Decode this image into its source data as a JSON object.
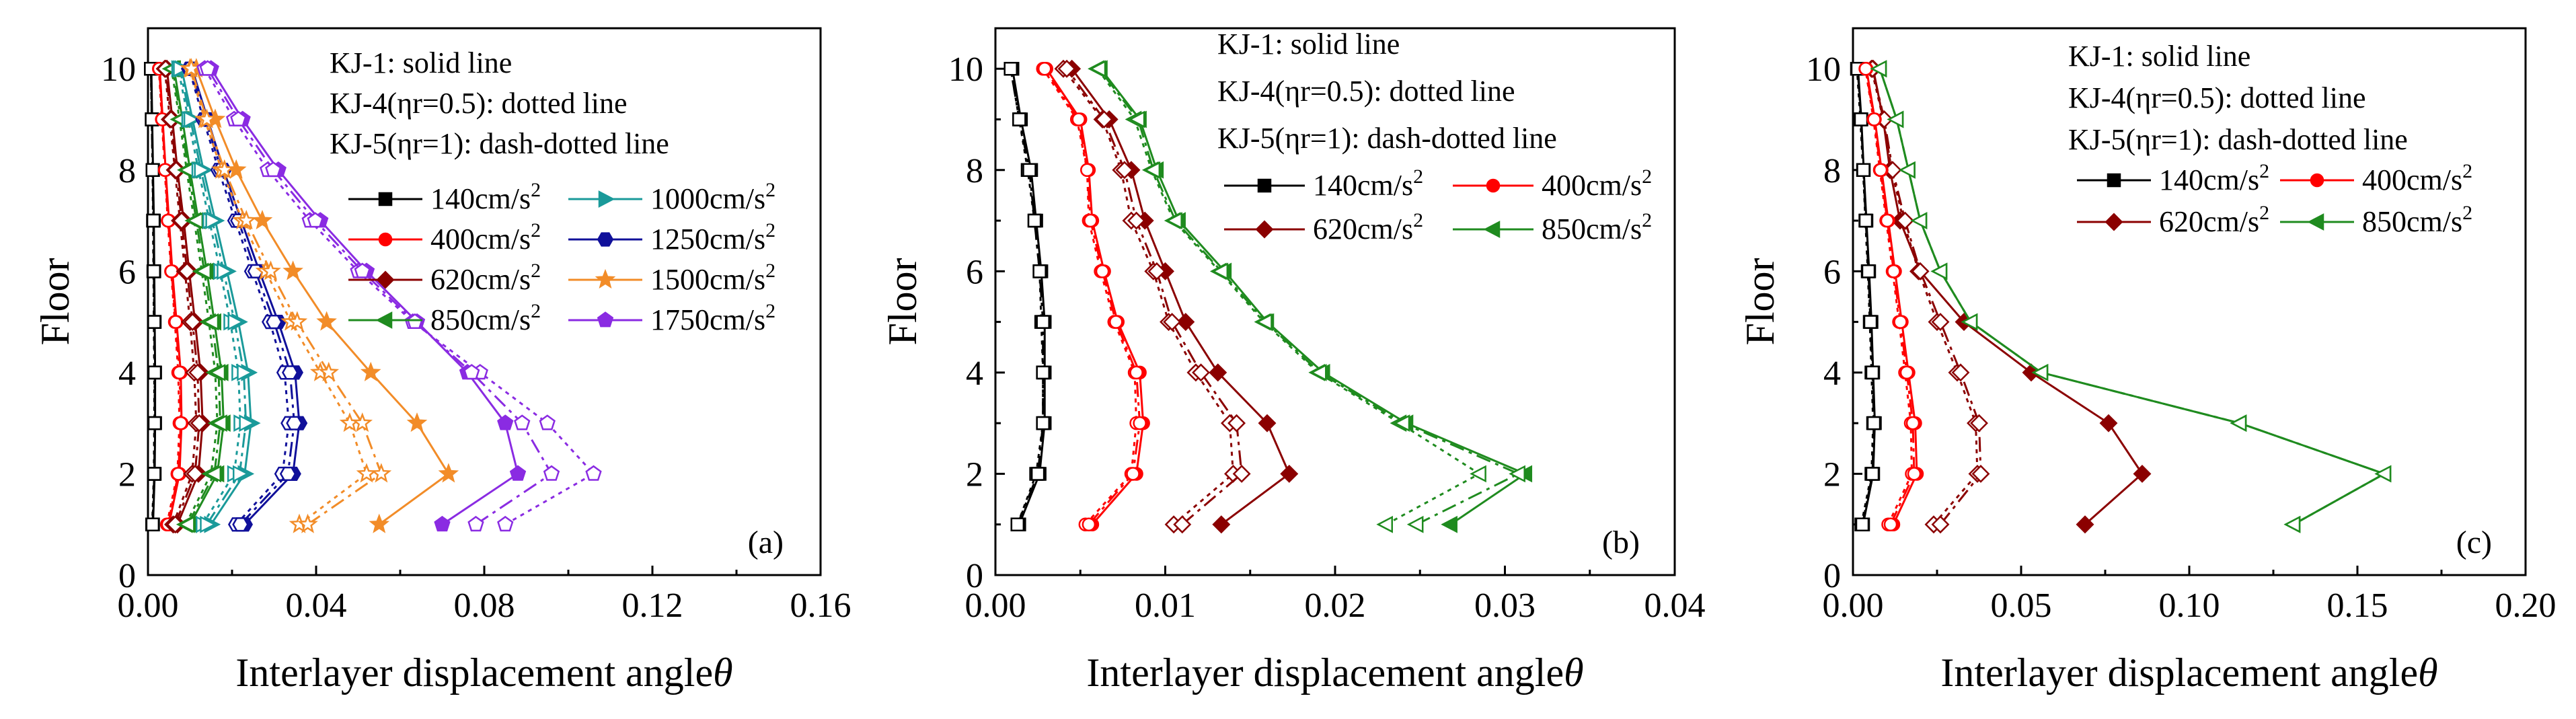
{
  "figure": {
    "xlabel": "Interlayer displacement angle",
    "xlabel_symbol": "θ",
    "ylabel": "Floor"
  },
  "chart_data": [
    {
      "type": "line",
      "panel_label": "(a)",
      "xlim": [
        0,
        0.16
      ],
      "ylim": [
        0,
        10.8
      ],
      "x_ticks": [
        "0.00",
        "0.04",
        "0.08",
        "0.12",
        "0.16"
      ],
      "y_ticks": [
        "0",
        "2",
        "4",
        "6",
        "8",
        "10"
      ],
      "legend_header": [
        "KJ-1: solid line",
        "KJ-4(ηr=0.5): dotted line",
        "KJ-5(ηr=1): dash-dotted line"
      ],
      "legend_columns": 2,
      "floors": [
        1,
        2,
        3,
        4,
        5,
        6,
        7,
        8,
        9,
        10
      ],
      "series": [
        {
          "name": "140cm/s",
          "sup": "2",
          "color": "#000000",
          "marker": "square",
          "kj1": [
            0.0012,
            0.0016,
            0.0017,
            0.0017,
            0.0016,
            0.0015,
            0.0014,
            0.0012,
            0.001,
            0.0008
          ],
          "kj4": [
            0.001,
            0.0014,
            0.0015,
            0.0015,
            0.0014,
            0.0013,
            0.0012,
            0.0011,
            0.0009,
            0.0007
          ],
          "kj5": [
            0.0011,
            0.0015,
            0.0016,
            0.0016,
            0.0015,
            0.0014,
            0.0013,
            0.0011,
            0.0009,
            0.0007
          ]
        },
        {
          "name": "400cm/s",
          "sup": "2",
          "color": "#ff0000",
          "marker": "circle",
          "kj1": [
            0.005,
            0.0075,
            0.008,
            0.0078,
            0.0068,
            0.0058,
            0.005,
            0.0042,
            0.0035,
            0.0028
          ],
          "kj4": [
            0.0045,
            0.007,
            0.0075,
            0.0072,
            0.0064,
            0.0055,
            0.0047,
            0.004,
            0.0033,
            0.0026
          ],
          "kj5": [
            0.0048,
            0.0072,
            0.0078,
            0.0075,
            0.0066,
            0.0056,
            0.0048,
            0.0041,
            0.0034,
            0.0027
          ]
        },
        {
          "name": "620cm/s",
          "sup": "2",
          "color": "#8b0000",
          "marker": "diamond",
          "kj1": [
            0.007,
            0.012,
            0.013,
            0.0125,
            0.0112,
            0.0098,
            0.0085,
            0.007,
            0.0058,
            0.0045
          ],
          "kj4": [
            0.006,
            0.0105,
            0.0115,
            0.011,
            0.01,
            0.0088,
            0.0076,
            0.0064,
            0.0052,
            0.004
          ],
          "kj5": [
            0.0065,
            0.0112,
            0.0122,
            0.0118,
            0.0106,
            0.0093,
            0.008,
            0.0067,
            0.0055,
            0.0042
          ]
        },
        {
          "name": "850cm/s",
          "sup": "2",
          "color": "#1f8b1f",
          "marker": "triangle-left",
          "kj1": [
            0.01,
            0.0165,
            0.018,
            0.0175,
            0.0158,
            0.014,
            0.012,
            0.01,
            0.0082,
            0.0062
          ],
          "kj4": [
            0.009,
            0.015,
            0.0165,
            0.016,
            0.0145,
            0.0128,
            0.011,
            0.0092,
            0.0075,
            0.0056
          ],
          "kj5": [
            0.0095,
            0.0158,
            0.0172,
            0.0168,
            0.0152,
            0.0134,
            0.0115,
            0.0096,
            0.0078,
            0.0059
          ]
        },
        {
          "name": "1000cm/s",
          "sup": "2",
          "color": "#1a9a9a",
          "marker": "triangle-right",
          "kj1": [
            0.015,
            0.023,
            0.0245,
            0.0238,
            0.0215,
            0.0188,
            0.016,
            0.0132,
            0.0106,
            0.008
          ],
          "kj4": [
            0.013,
            0.0205,
            0.022,
            0.0215,
            0.0196,
            0.0172,
            0.0146,
            0.012,
            0.0096,
            0.0072
          ],
          "kj5": [
            0.014,
            0.0218,
            0.0233,
            0.0228,
            0.0206,
            0.018,
            0.0153,
            0.0126,
            0.0101,
            0.0076
          ]
        },
        {
          "name": "1250cm/s",
          "sup": "2",
          "color": "#10109a",
          "marker": "hexagon",
          "kj1": [
            0.023,
            0.0345,
            0.036,
            0.035,
            0.031,
            0.0265,
            0.0222,
            0.018,
            0.0142,
            0.0105
          ],
          "kj4": [
            0.021,
            0.032,
            0.0335,
            0.0325,
            0.029,
            0.0248,
            0.0208,
            0.0168,
            0.0132,
            0.0098
          ],
          "kj5": [
            0.022,
            0.0333,
            0.0348,
            0.0338,
            0.03,
            0.0256,
            0.0215,
            0.0174,
            0.0137,
            0.0101
          ]
        },
        {
          "name": "1500cm/s",
          "sup": "2",
          "color": "#f28c28",
          "marker": "star",
          "kj1": [
            0.055,
            0.0715,
            0.064,
            0.053,
            0.0425,
            0.0345,
            0.0272,
            0.021,
            0.016,
            0.0115
          ],
          "kj4": [
            0.036,
            0.052,
            0.048,
            0.041,
            0.034,
            0.028,
            0.0225,
            0.0175,
            0.0135,
            0.01
          ],
          "kj5": [
            0.038,
            0.0555,
            0.051,
            0.043,
            0.0355,
            0.0292,
            0.0234,
            0.0182,
            0.014,
            0.0103
          ]
        },
        {
          "name": "1750cm/s",
          "sup": "2",
          "color": "#8a2be2",
          "marker": "pentagon",
          "kj1": [
            0.07,
            0.088,
            0.085,
            0.076,
            0.064,
            0.052,
            0.041,
            0.031,
            0.0225,
            0.015
          ],
          "kj4": [
            0.085,
            0.106,
            0.095,
            0.079,
            0.063,
            0.05,
            0.0385,
            0.0285,
            0.0205,
            0.0135
          ],
          "kj5": [
            0.078,
            0.096,
            0.089,
            0.077,
            0.0635,
            0.051,
            0.0398,
            0.0298,
            0.0215,
            0.0142
          ]
        }
      ]
    },
    {
      "type": "line",
      "panel_label": "(b)",
      "xlim": [
        0,
        0.04
      ],
      "ylim": [
        0,
        10.8
      ],
      "x_ticks": [
        "0.00",
        "0.01",
        "0.02",
        "0.03",
        "0.04"
      ],
      "y_ticks": [
        "0",
        "2",
        "4",
        "6",
        "8",
        "10"
      ],
      "legend_header": [
        "KJ-1: solid line",
        "KJ-4(ηr=0.5): dotted line",
        "KJ-5(ηr=1): dash-dotted line"
      ],
      "legend_columns": 2,
      "floors": [
        1,
        2,
        3,
        4,
        5,
        6,
        7,
        8,
        9,
        10
      ],
      "series": [
        {
          "name": "140cm/s",
          "sup": "2",
          "color": "#000000",
          "marker": "square",
          "kj1": [
            0.0014,
            0.0026,
            0.0029,
            0.0029,
            0.0029,
            0.0027,
            0.0024,
            0.0021,
            0.0015,
            0.001
          ],
          "kj4": [
            0.0013,
            0.0024,
            0.0028,
            0.0028,
            0.0027,
            0.0026,
            0.0023,
            0.0019,
            0.0014,
            0.0009
          ],
          "kj5": [
            0.0013,
            0.0025,
            0.0028,
            0.0028,
            0.0028,
            0.0026,
            0.0023,
            0.002,
            0.0014,
            0.0009
          ]
        },
        {
          "name": "620cm/s",
          "sup": "2",
          "color": "#8b0000",
          "marker": "diamond",
          "kj1": [
            0.0133,
            0.0173,
            0.016,
            0.0131,
            0.0112,
            0.01,
            0.0088,
            0.008,
            0.0067,
            0.0045
          ],
          "kj4": [
            0.0105,
            0.014,
            0.0138,
            0.0118,
            0.0102,
            0.0093,
            0.008,
            0.0074,
            0.0063,
            0.004
          ],
          "kj5": [
            0.011,
            0.0145,
            0.0142,
            0.0121,
            0.0104,
            0.0095,
            0.0083,
            0.0076,
            0.0064,
            0.0042
          ]
        },
        {
          "name": "400cm/s",
          "sup": "2",
          "color": "#ff0000",
          "marker": "circle",
          "kj1": [
            0.0057,
            0.0083,
            0.0087,
            0.0085,
            0.0072,
            0.0064,
            0.0057,
            0.0055,
            0.005,
            0.003
          ],
          "kj4": [
            0.0053,
            0.008,
            0.0083,
            0.0082,
            0.007,
            0.0062,
            0.0055,
            0.0054,
            0.0048,
            0.0028
          ],
          "kj5": [
            0.0055,
            0.0081,
            0.0085,
            0.0083,
            0.0071,
            0.0063,
            0.0056,
            0.0054,
            0.0049,
            0.0029
          ]
        },
        {
          "name": "850cm/s",
          "sup": "2",
          "color": "#1f8b1f",
          "marker": "triangle-left",
          "kj1": [
            0.0268,
            0.0312,
            0.0242,
            0.0193,
            0.016,
            0.0135,
            0.0108,
            0.0095,
            0.0085,
            0.0062
          ],
          "kj4": [
            0.023,
            0.0285,
            0.0238,
            0.019,
            0.0158,
            0.0132,
            0.0105,
            0.0092,
            0.0082,
            0.006
          ],
          "kj5": [
            0.0248,
            0.0308,
            0.024,
            0.0191,
            0.0159,
            0.0133,
            0.0106,
            0.0093,
            0.0084,
            0.0061
          ]
        }
      ]
    },
    {
      "type": "line",
      "panel_label": "(c)",
      "xlim": [
        0,
        0.2
      ],
      "ylim": [
        0,
        10.8
      ],
      "x_ticks": [
        "0.00",
        "0.05",
        "0.10",
        "0.15",
        "0.20"
      ],
      "y_ticks": [
        "0",
        "2",
        "4",
        "6",
        "8",
        "10"
      ],
      "legend_header": [
        "KJ-1: solid line",
        "KJ-4(ηr=0.5): dotted line",
        "KJ-5(ηr=1): dash-dotted line"
      ],
      "legend_columns": 2,
      "floors": [
        1,
        2,
        3,
        4,
        5,
        6,
        7,
        8,
        9,
        10
      ],
      "series": [
        {
          "name": "140cm/s",
          "sup": "2",
          "color": "#000000",
          "marker": "square",
          "kj1": [
            0.003,
            0.006,
            0.0065,
            0.006,
            0.0055,
            0.0048,
            0.004,
            0.0032,
            0.0025,
            0.0015
          ],
          "kj4": [
            0.0025,
            0.0055,
            0.006,
            0.0055,
            0.005,
            0.0044,
            0.0037,
            0.003,
            0.0022,
            0.0012
          ],
          "kj5": [
            0.0028,
            0.0058,
            0.0062,
            0.0058,
            0.0052,
            0.0046,
            0.0038,
            0.0031,
            0.0024,
            0.0014
          ]
        },
        {
          "name": "620cm/s",
          "sup": "2",
          "color": "#8b0000",
          "marker": "diamond",
          "kj1": [
            0.069,
            0.086,
            0.076,
            0.053,
            0.033,
            0.02,
            0.014,
            0.011,
            0.009,
            0.006
          ],
          "kj4": [
            0.024,
            0.037,
            0.0365,
            0.031,
            0.025,
            0.0195,
            0.015,
            0.0115,
            0.009,
            0.0055
          ],
          "kj5": [
            0.026,
            0.038,
            0.0375,
            0.032,
            0.026,
            0.02,
            0.0155,
            0.0118,
            0.0093,
            0.0058
          ]
        },
        {
          "name": "400cm/s",
          "sup": "2",
          "color": "#ff0000",
          "marker": "circle",
          "kj1": [
            0.012,
            0.019,
            0.0185,
            0.0165,
            0.0145,
            0.0125,
            0.0105,
            0.0085,
            0.0065,
            0.004
          ],
          "kj4": [
            0.0105,
            0.0175,
            0.0172,
            0.0155,
            0.0137,
            0.0118,
            0.0099,
            0.008,
            0.0061,
            0.0037
          ],
          "kj5": [
            0.0112,
            0.0182,
            0.0178,
            0.016,
            0.0141,
            0.0121,
            0.0102,
            0.0082,
            0.0063,
            0.0038
          ]
        },
        {
          "name": "850cm/s",
          "sup": "2",
          "color": "#1f8b1f",
          "marker": "triangle-left",
          "kj1": [
            0.131,
            0.158,
            0.115,
            0.056,
            0.035,
            0.026,
            0.02,
            0.0165,
            0.013,
            0.008
          ],
          "kj4": [
            0.131,
            0.158,
            0.115,
            0.056,
            0.035,
            0.026,
            0.02,
            0.0165,
            0.013,
            0.008
          ],
          "kj5": [
            0.131,
            0.158,
            0.115,
            0.056,
            0.035,
            0.026,
            0.02,
            0.0165,
            0.013,
            0.008
          ]
        }
      ]
    }
  ]
}
